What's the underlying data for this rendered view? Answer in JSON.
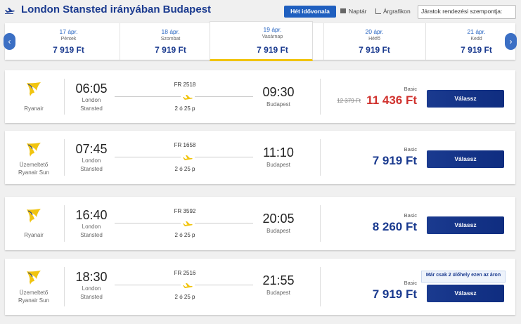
{
  "header": {
    "title": "London Stansted irányában Budapest",
    "tabs": [
      "Hét idővonala",
      "Naptár",
      "Árgrafikon"
    ],
    "sort": "Járatok rendezési szempontja:"
  },
  "dates": [
    {
      "date": "17 ápr.",
      "day": "Péntek",
      "price": "7 919 Ft"
    },
    {
      "date": "18 ápr.",
      "day": "Szombat",
      "price": "7 919 Ft"
    },
    {
      "date": "19 ápr.",
      "day": "Vasárnap",
      "price": "7 919 Ft"
    },
    {
      "date": "20 ápr.",
      "day": "Hétfő",
      "price": "7 919 Ft"
    },
    {
      "date": "21 ápr.",
      "day": "Kedd",
      "price": "7 919 Ft"
    }
  ],
  "flights": [
    {
      "airline": "Ryanair",
      "flight": "FR 2518",
      "dep_time": "06:05",
      "dep_city": "London",
      "dep_airport": "Stansted",
      "arr_time": "09:30",
      "arr_city": "Budapest",
      "duration": "2 ó 25 p",
      "fare": "Basic",
      "old_price": "12 379 Ft",
      "price": "11 436 Ft",
      "button": "Válassz"
    },
    {
      "operator_label": "Üzemeltető",
      "airline": "Ryanair Sun",
      "flight": "FR 1658",
      "dep_time": "07:45",
      "dep_city": "London",
      "dep_airport": "Stansted",
      "arr_time": "11:10",
      "arr_city": "Budapest",
      "duration": "2 ó 25 p",
      "fare": "Basic",
      "price": "7 919 Ft",
      "button": "Válassz"
    },
    {
      "airline": "Ryanair",
      "flight": "FR 3592",
      "dep_time": "16:40",
      "dep_city": "London",
      "dep_airport": "Stansted",
      "arr_time": "20:05",
      "arr_city": "Budapest",
      "duration": "2 ó 25 p",
      "fare": "Basic",
      "price": "8 260 Ft",
      "button": "Válassz"
    },
    {
      "operator_label": "Üzemeltető",
      "airline": "Ryanair Sun",
      "flight": "FR 2516",
      "dep_time": "18:30",
      "dep_city": "London",
      "dep_airport": "Stansted",
      "arr_time": "21:55",
      "arr_city": "Budapest",
      "duration": "2 ó 25 p",
      "fare": "Basic",
      "notice": "Már csak 2 ülőhely ezen az áron",
      "price": "7 919 Ft",
      "button": "Válassz"
    }
  ]
}
